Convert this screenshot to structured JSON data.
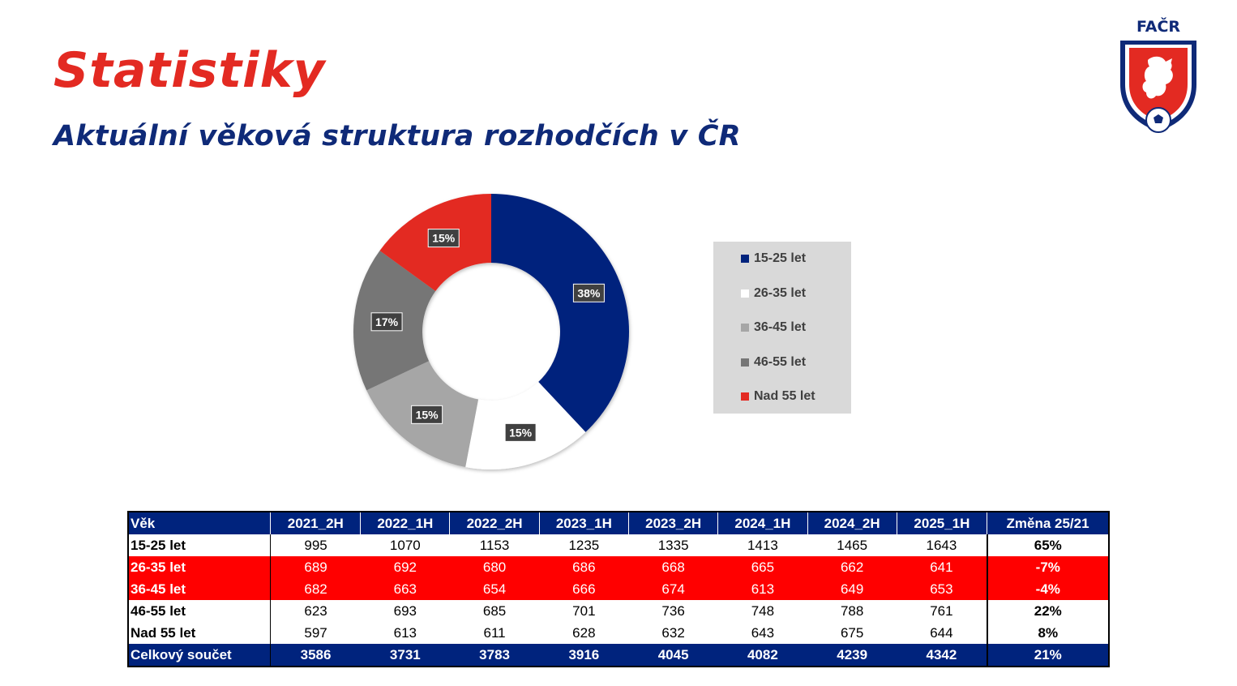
{
  "header": {
    "title": "Statistiky",
    "subtitle": "Aktuální věková struktura rozhodčích v ČR",
    "logo_text": "FAČR"
  },
  "colors": {
    "brand_red": "#e32a22",
    "brand_blue": "#0f2a78",
    "table_blue": "#00237d",
    "table_red": "#ff0000"
  },
  "chart_data": {
    "type": "pie",
    "subtype": "donut",
    "labels": [
      "15-25 let",
      "26-35 let",
      "36-45 let",
      "46-55 let",
      "Nad 55 let"
    ],
    "values": [
      38,
      15,
      15,
      17,
      15
    ],
    "data_labels": [
      "38%",
      "15%",
      "15%",
      "17%",
      "15%"
    ],
    "colors": [
      "#00237d",
      "#ffffff",
      "#a6a6a6",
      "#767676",
      "#e32a22"
    ],
    "legend": {
      "placement": "right",
      "entries": [
        "15-25 let",
        "26-35 let",
        "36-45 let",
        "46-55 let",
        "Nad 55 let"
      ]
    }
  },
  "table": {
    "headers": [
      "Věk",
      "2021_2H",
      "2022_1H",
      "2022_2H",
      "2023_1H",
      "2023_2H",
      "2024_1H",
      "2024_2H",
      "2025_1H",
      "Změna 25/21"
    ],
    "rows": [
      {
        "label": "15-25 let",
        "values": [
          "995",
          "1070",
          "1153",
          "1235",
          "1335",
          "1413",
          "1465",
          "1643"
        ],
        "change": "65%",
        "highlight": "white"
      },
      {
        "label": "26-35 let",
        "values": [
          "689",
          "692",
          "680",
          "686",
          "668",
          "665",
          "662",
          "641"
        ],
        "change": "-7%",
        "highlight": "red"
      },
      {
        "label": "36-45 let",
        "values": [
          "682",
          "663",
          "654",
          "666",
          "674",
          "613",
          "649",
          "653"
        ],
        "change": "-4%",
        "highlight": "red"
      },
      {
        "label": "46-55 let",
        "values": [
          "623",
          "693",
          "685",
          "701",
          "736",
          "748",
          "788",
          "761"
        ],
        "change": "22%",
        "highlight": "white"
      },
      {
        "label": "Nad 55 let",
        "values": [
          "597",
          "613",
          "611",
          "628",
          "632",
          "643",
          "675",
          "644"
        ],
        "change": "8%",
        "highlight": "white"
      }
    ],
    "total": {
      "label": "Celkový součet",
      "values": [
        "3586",
        "3731",
        "3783",
        "3916",
        "4045",
        "4082",
        "4239",
        "4342"
      ],
      "change": "21%"
    }
  }
}
